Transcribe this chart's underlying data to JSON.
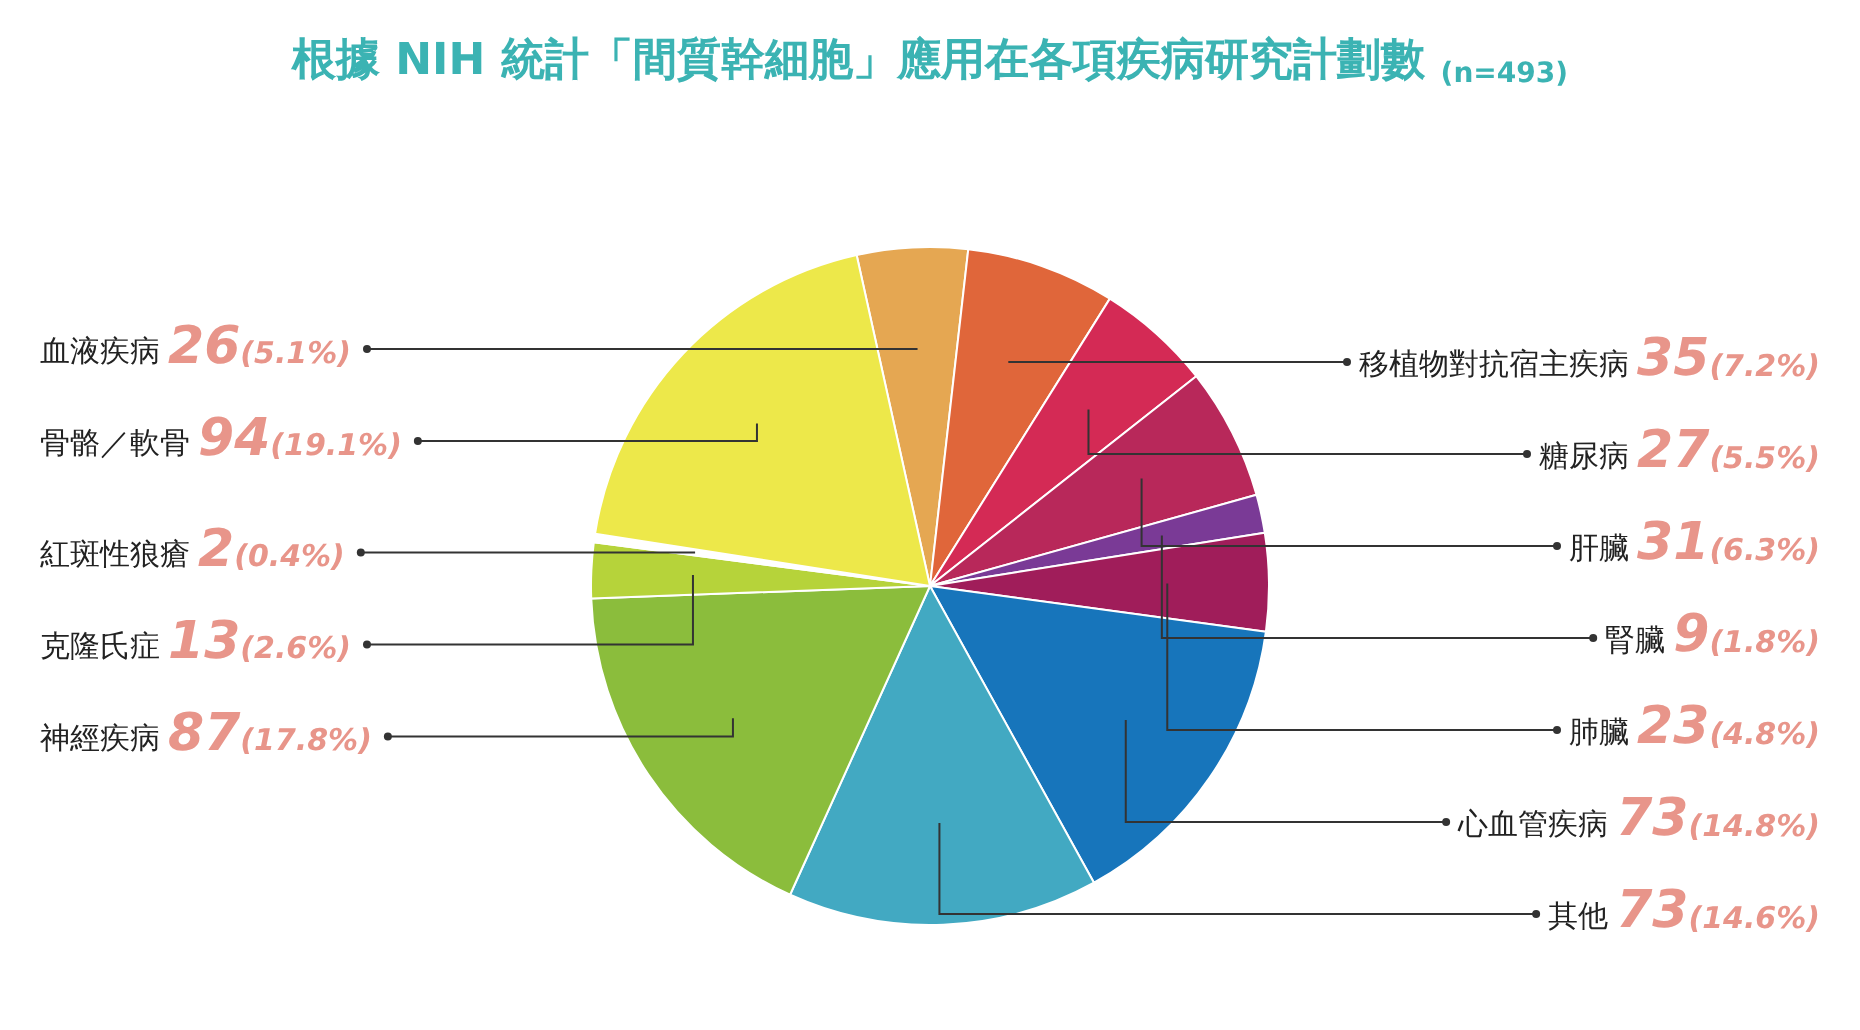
{
  "chart_data": {
    "type": "pie",
    "title": "根據 NIH 統計「間質幹細胞」應用在各項疾病研究計劃數",
    "subtitle": "(n=493)",
    "categories": [
      "血液疾病",
      "移植物對抗宿主疾病",
      "糖尿病",
      "肝臟",
      "腎臟",
      "肺臟",
      "心血管疾病",
      "其他",
      "神經疾病",
      "克隆氏症",
      "紅斑性狼瘡",
      "骨骼／軟骨"
    ],
    "values": [
      26,
      35,
      27,
      31,
      9,
      23,
      73,
      73,
      87,
      13,
      2,
      94
    ],
    "colors": [
      "#e5a752",
      "#e0663a",
      "#d42a55",
      "#b8285a",
      "#7a3a96",
      "#a01d5a",
      "#1775bb",
      "#42a9c2",
      "#8bbd3c",
      "#b6d33a",
      "#ffffff",
      "#ede84a"
    ],
    "value_labels": [
      "26(5.1%)",
      "35(7.2%)",
      "27(5.5%)",
      "31(6.3%)",
      "9(1.8%)",
      "23(4.8%)",
      "73(14.8%)",
      "73(14.6%)",
      "87(17.8%)",
      "13(2.6%)",
      "2(0.4%)",
      "94(19.1%)"
    ]
  }
}
